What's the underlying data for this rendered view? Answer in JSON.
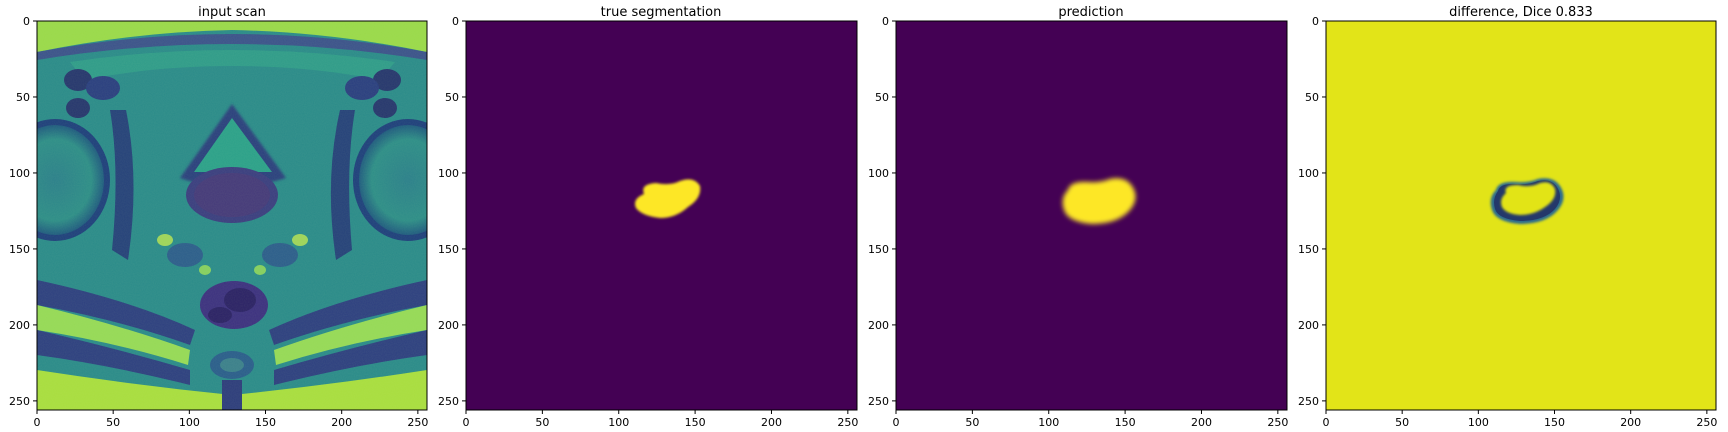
{
  "figure": {
    "panels": [
      {
        "title": "input scan",
        "kind": "scan",
        "x_ticks": [
          "0",
          "50",
          "100",
          "150",
          "200",
          "250"
        ],
        "y_ticks": [
          "0",
          "50",
          "100",
          "150",
          "200",
          "250"
        ]
      },
      {
        "title": "true segmentation",
        "kind": "mask",
        "x_ticks": [
          "0",
          "50",
          "100",
          "150",
          "200",
          "250"
        ],
        "y_ticks": [
          "0",
          "50",
          "100",
          "150",
          "200",
          "250"
        ]
      },
      {
        "title": "prediction",
        "kind": "prediction",
        "x_ticks": [
          "0",
          "50",
          "100",
          "150",
          "200",
          "250"
        ],
        "y_ticks": [
          "0",
          "50",
          "100",
          "150",
          "200",
          "250"
        ]
      },
      {
        "title": "difference, Dice 0.833",
        "kind": "difference",
        "x_ticks": [
          "0",
          "50",
          "100",
          "150",
          "200",
          "250"
        ],
        "y_ticks": [
          "0",
          "50",
          "100",
          "150",
          "200",
          "250"
        ]
      }
    ],
    "image_extent": [
      0,
      256
    ],
    "colors": {
      "background_dark": "#440154",
      "foreground_yellow": "#fde725",
      "difference_bg": "#e2e418",
      "scan_dark": "#1f3e7a",
      "scan_mid": "#2a8c8a",
      "scan_light": "#a8dc3c"
    }
  }
}
